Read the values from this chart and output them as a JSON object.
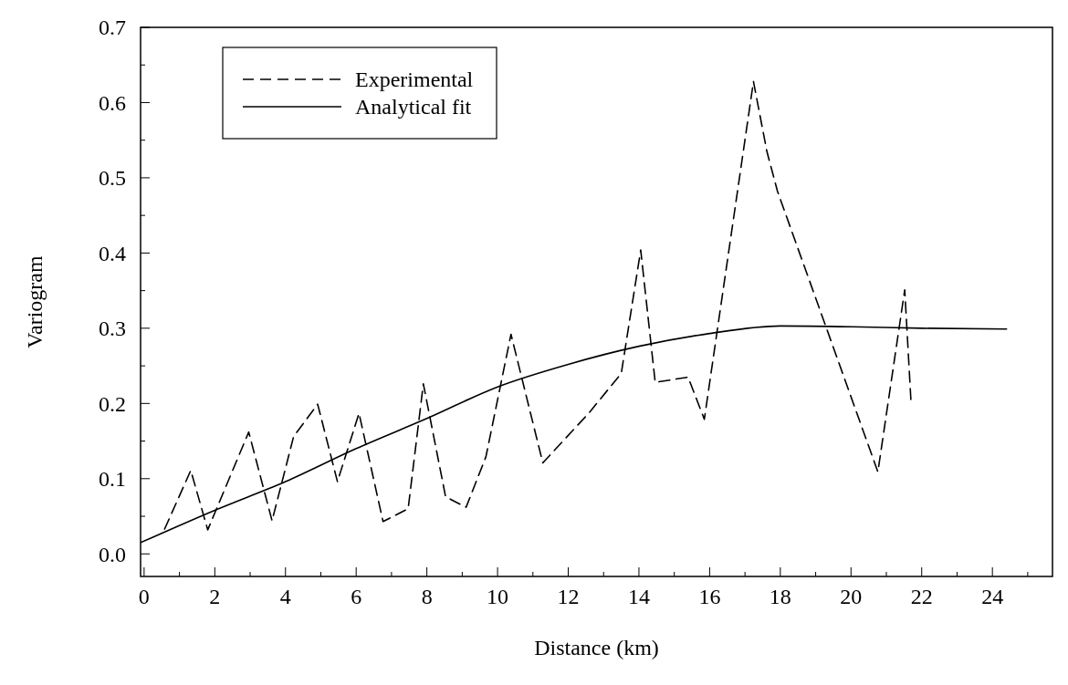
{
  "chart_data": {
    "type": "line",
    "xlabel": "Distance (km)",
    "ylabel": "Variogram",
    "xlim": [
      -0.1,
      25.7
    ],
    "ylim": [
      -0.03,
      0.7
    ],
    "xticks": [
      0,
      {
        "value": 1,
        "label": null
      },
      2,
      {
        "value": 3,
        "label": null
      },
      4,
      {
        "value": 5,
        "label": null
      },
      6,
      {
        "value": 7,
        "label": null
      },
      8,
      {
        "value": 9,
        "label": null
      },
      10,
      {
        "value": 11,
        "label": null
      },
      12,
      {
        "value": 13,
        "label": null
      },
      14,
      {
        "value": 15,
        "label": null
      },
      16,
      {
        "value": 17,
        "label": null
      },
      18,
      {
        "value": 19,
        "label": null
      },
      20,
      {
        "value": 21,
        "label": null
      },
      22,
      {
        "value": 23,
        "label": null
      },
      24,
      {
        "value": 25,
        "label": null
      }
    ],
    "yticks": [
      {
        "value": 0,
        "label": "0.0"
      },
      {
        "value": 0.05,
        "label": null
      },
      0.1,
      {
        "value": 0.15,
        "label": null
      },
      0.2,
      {
        "value": 0.25,
        "label": null
      },
      0.3,
      {
        "value": 0.35,
        "label": null
      },
      0.4,
      {
        "value": 0.45,
        "label": null
      },
      0.5,
      {
        "value": 0.55,
        "label": null
      },
      0.6,
      {
        "value": 0.65,
        "label": null
      },
      0.7
    ],
    "grid": false,
    "legend": "top left",
    "marker": "none",
    "series": [
      {
        "name": "Experimental",
        "color": "#000000",
        "line_style": "dashed",
        "x": [
          0.58,
          1.32,
          1.8,
          2.96,
          3.62,
          4.23,
          4.91,
          5.47,
          6.08,
          6.76,
          7.47,
          7.9,
          8.53,
          9.11,
          9.67,
          10.38,
          11.28,
          12.58,
          13.5,
          14.05,
          14.46,
          15.39,
          15.85,
          17.24,
          17.62,
          17.92,
          20.76,
          21.52,
          21.7
        ],
        "values": [
          0.033,
          0.111,
          0.032,
          0.162,
          0.044,
          0.156,
          0.199,
          0.096,
          0.187,
          0.043,
          0.06,
          0.226,
          0.076,
          0.062,
          0.129,
          0.292,
          0.121,
          0.187,
          0.24,
          0.404,
          0.228,
          0.235,
          0.179,
          0.628,
          0.535,
          0.482,
          0.109,
          0.351,
          0.2
        ]
      },
      {
        "name": "Analytical fit",
        "color": "#000000",
        "line_style": "solid",
        "x": [
          -0.1,
          2,
          4,
          6,
          8,
          10,
          12,
          14,
          16,
          18,
          20,
          22,
          24.4
        ],
        "values": [
          0.015,
          0.058,
          0.096,
          0.14,
          0.18,
          0.222,
          0.252,
          0.276,
          0.293,
          0.303,
          0.302,
          0.3,
          0.299
        ]
      }
    ]
  }
}
